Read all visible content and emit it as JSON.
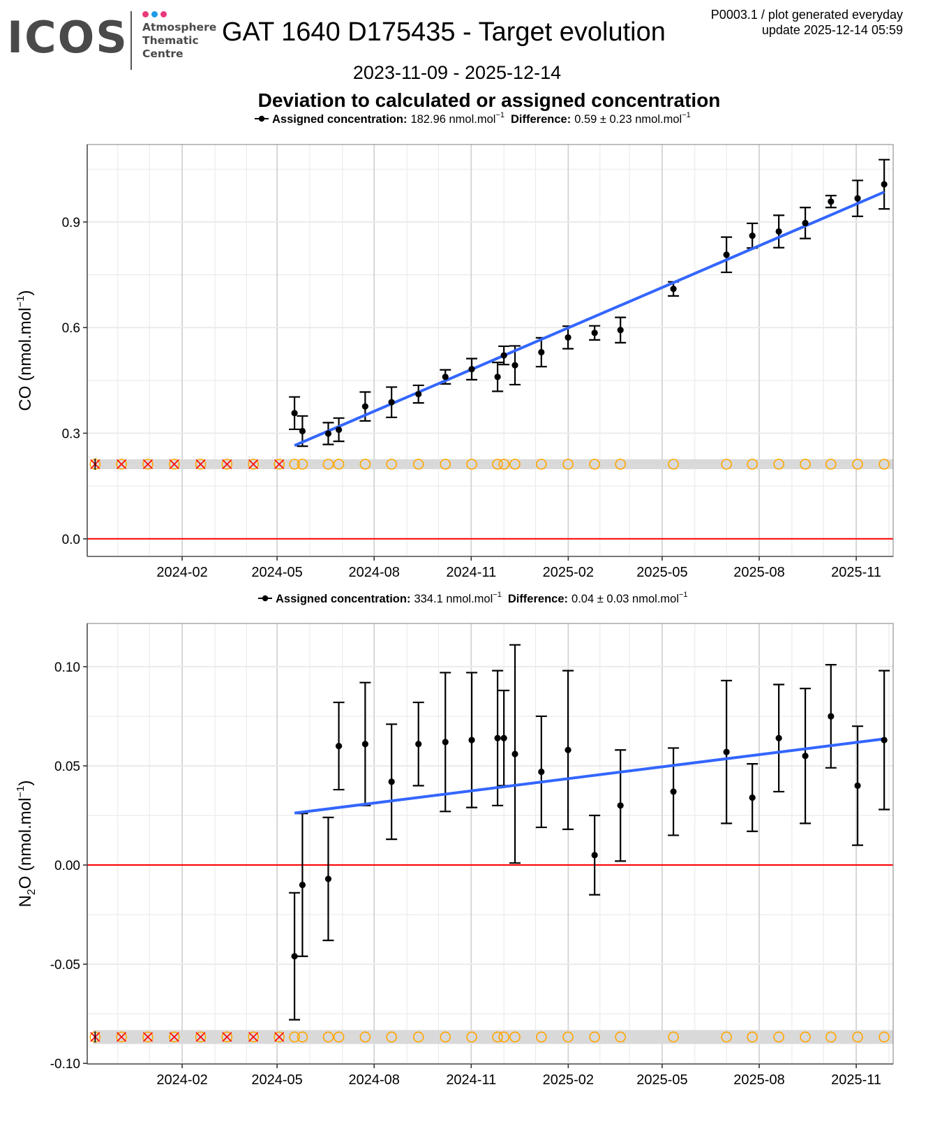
{
  "header": {
    "logo_text": "ICOS",
    "logo_subtitle": [
      "Atmosphere",
      "Thematic",
      "Centre"
    ],
    "logo_dot_colors": [
      "#e8397d",
      "#1e9be9",
      "#e8397d"
    ],
    "title": "GAT 1640 D175435 - Target evolution",
    "meta_line1": "P0003.1 / plot generated everyday",
    "meta_line2": "update  2025-12-14 05:59",
    "date_range": "2023-11-09 - 2025-12-14",
    "chart_heading": "Deviation to calculated or assigned concentration"
  },
  "colors": {
    "points": "#000000",
    "trend": "#3366ff",
    "zero_line": "#ff0000",
    "flag_band": "#d9d9d9",
    "flag_circle": "#ffa500",
    "flag_cross": "#ff0000",
    "grid_major": "#d3d3d3",
    "grid_minor": "#ebebeb"
  },
  "chart_data": [
    {
      "type": "scatter",
      "title": "",
      "xlabel": "",
      "ylabel": "CO (nmol.mol⁻¹)",
      "ylabel_main": "CO (nmol.mol",
      "ylabel_sup": "−1",
      "ylabel_tail": ")",
      "legend": {
        "position": "top",
        "assigned_label": "Assigned concentration:",
        "assigned_value": "182.96 nmol.mol",
        "diff_label": "Difference:",
        "diff_value": "0.59 ± 0.23 nmol.mol",
        "unit_sup": "−1"
      },
      "x_origin_date": "2023-11-09",
      "x_unit": "days since 2023-11-09",
      "xlim": [
        -6,
        758
      ],
      "ylim": [
        -0.05,
        1.12
      ],
      "x_ticks": [
        {
          "label": "2024-02",
          "day": 84
        },
        {
          "label": "2024-05",
          "day": 174
        },
        {
          "label": "2024-08",
          "day": 266
        },
        {
          "label": "2024-11",
          "day": 358
        },
        {
          "label": "2025-02",
          "day": 450
        },
        {
          "label": "2025-05",
          "day": 539
        },
        {
          "label": "2025-08",
          "day": 631
        },
        {
          "label": "2025-11",
          "day": 723
        }
      ],
      "x_minor_days": [
        23,
        53,
        115,
        145,
        205,
        236,
        297,
        327,
        389,
        419,
        480,
        508,
        570,
        600,
        662,
        692,
        754
      ],
      "y_ticks": [
        0.0,
        0.3,
        0.6,
        0.9
      ],
      "y_tick_labels": [
        "0.0",
        "0.3",
        "0.6",
        "0.9"
      ],
      "y_minor": [
        0.15,
        0.45,
        0.75,
        1.05
      ],
      "zero_line": 0.0,
      "flag_band_y": 0.212,
      "flag_band_halfheight": 0.014,
      "points": [
        {
          "day": 190.5,
          "y": 0.357,
          "err": 0.046
        },
        {
          "day": 198,
          "y": 0.306,
          "err": 0.043
        },
        {
          "day": 222.5,
          "y": 0.299,
          "err": 0.031
        },
        {
          "day": 232.5,
          "y": 0.31,
          "err": 0.033
        },
        {
          "day": 257.5,
          "y": 0.376,
          "err": 0.041
        },
        {
          "day": 282.5,
          "y": 0.388,
          "err": 0.043
        },
        {
          "day": 308,
          "y": 0.411,
          "err": 0.025
        },
        {
          "day": 333.5,
          "y": 0.46,
          "err": 0.02
        },
        {
          "day": 358.5,
          "y": 0.482,
          "err": 0.03
        },
        {
          "day": 383,
          "y": 0.46,
          "err": 0.041
        },
        {
          "day": 389,
          "y": 0.521,
          "err": 0.026
        },
        {
          "day": 399.5,
          "y": 0.493,
          "err": 0.055
        },
        {
          "day": 424.5,
          "y": 0.53,
          "err": 0.041
        },
        {
          "day": 449.8,
          "y": 0.572,
          "err": 0.032
        },
        {
          "day": 475,
          "y": 0.585,
          "err": 0.02
        },
        {
          "day": 499.5,
          "y": 0.593,
          "err": 0.036
        },
        {
          "day": 549.7,
          "y": 0.71,
          "err": 0.02
        },
        {
          "day": 600,
          "y": 0.807,
          "err": 0.05
        },
        {
          "day": 624.5,
          "y": 0.861,
          "err": 0.035
        },
        {
          "day": 649.6,
          "y": 0.873,
          "err": 0.046
        },
        {
          "day": 674.7,
          "y": 0.897,
          "err": 0.044
        },
        {
          "day": 699,
          "y": 0.958,
          "err": 0.017
        },
        {
          "day": 724.3,
          "y": 0.967,
          "err": 0.051
        },
        {
          "day": 749.5,
          "y": 1.007,
          "err": 0.07
        }
      ],
      "trend": {
        "x": [
          190.5,
          749.5
        ],
        "y": [
          0.265,
          0.985
        ]
      },
      "flagged_days": [
        1.5,
        26.5,
        51.5,
        76.5,
        101.5,
        126.5,
        151.5,
        176
      ],
      "ok_days": [
        190.5,
        198,
        222.5,
        232.5,
        257.5,
        282.5,
        308,
        333.5,
        358.5,
        383,
        389,
        399.5,
        424.5,
        449.8,
        475,
        499.5,
        549.7,
        600,
        624.5,
        649.6,
        674.7,
        699,
        724.3,
        749.5
      ]
    },
    {
      "type": "scatter",
      "title": "",
      "xlabel": "",
      "ylabel": "N₂O (nmol.mol⁻¹)",
      "ylabel_main": "N",
      "ylabel_sub": "2",
      "ylabel_rest": "O (nmol.mol",
      "ylabel_sup": "−1",
      "ylabel_tail": ")",
      "legend": {
        "position": "top",
        "assigned_label": "Assigned concentration:",
        "assigned_value": "334.1 nmol.mol",
        "diff_label": "Difference:",
        "diff_value": "0.04 ± 0.03 nmol.mol",
        "unit_sup": "−1"
      },
      "x_origin_date": "2023-11-09",
      "x_unit": "days since 2023-11-09",
      "xlim": [
        -6,
        758
      ],
      "ylim": [
        -0.1003,
        0.1218
      ],
      "x_ticks": [
        {
          "label": "2024-02",
          "day": 84
        },
        {
          "label": "2024-05",
          "day": 174
        },
        {
          "label": "2024-08",
          "day": 266
        },
        {
          "label": "2024-11",
          "day": 358
        },
        {
          "label": "2025-02",
          "day": 450
        },
        {
          "label": "2025-05",
          "day": 539
        },
        {
          "label": "2025-08",
          "day": 631
        },
        {
          "label": "2025-11",
          "day": 723
        }
      ],
      "x_minor_days": [
        23,
        53,
        115,
        145,
        205,
        236,
        297,
        327,
        389,
        419,
        480,
        508,
        570,
        600,
        662,
        692,
        754
      ],
      "y_ticks": [
        -0.1,
        -0.05,
        0.0,
        0.05,
        0.1
      ],
      "y_tick_labels": [
        "-0.10",
        "-0.05",
        "0.00",
        "0.05",
        "0.10"
      ],
      "y_minor": [
        -0.075,
        -0.025,
        0.025,
        0.075
      ],
      "zero_line": 0.0,
      "flag_band_y": -0.0867,
      "flag_band_halfheight": 0.0035,
      "points": [
        {
          "day": 190.5,
          "y": -0.046,
          "err": 0.032
        },
        {
          "day": 198,
          "y": -0.01,
          "err": 0.036
        },
        {
          "day": 222.5,
          "y": -0.007,
          "err": 0.031
        },
        {
          "day": 232.5,
          "y": 0.06,
          "err": 0.022
        },
        {
          "day": 257.5,
          "y": 0.061,
          "err": 0.031
        },
        {
          "day": 282.5,
          "y": 0.042,
          "err": 0.029
        },
        {
          "day": 308,
          "y": 0.061,
          "err": 0.021
        },
        {
          "day": 333.5,
          "y": 0.062,
          "err": 0.035
        },
        {
          "day": 358.5,
          "y": 0.063,
          "err": 0.034
        },
        {
          "day": 383,
          "y": 0.064,
          "err": 0.034
        },
        {
          "day": 389,
          "y": 0.064,
          "err": 0.024
        },
        {
          "day": 399.5,
          "y": 0.056,
          "err": 0.055
        },
        {
          "day": 424.5,
          "y": 0.047,
          "err": 0.028
        },
        {
          "day": 449.8,
          "y": 0.058,
          "err": 0.04
        },
        {
          "day": 475,
          "y": 0.005,
          "err": 0.02
        },
        {
          "day": 499.5,
          "y": 0.03,
          "err": 0.028
        },
        {
          "day": 549.7,
          "y": 0.037,
          "err": 0.022
        },
        {
          "day": 600,
          "y": 0.057,
          "err": 0.036
        },
        {
          "day": 624.5,
          "y": 0.034,
          "err": 0.017
        },
        {
          "day": 649.6,
          "y": 0.064,
          "err": 0.027
        },
        {
          "day": 674.7,
          "y": 0.055,
          "err": 0.034
        },
        {
          "day": 699,
          "y": 0.075,
          "err": 0.026
        },
        {
          "day": 724.3,
          "y": 0.04,
          "err": 0.03
        },
        {
          "day": 749.5,
          "y": 0.063,
          "err": 0.035
        }
      ],
      "trend": {
        "x": [
          190.5,
          749.5
        ],
        "y": [
          0.0262,
          0.0636
        ]
      },
      "flagged_days": [
        1.5,
        26.5,
        51.5,
        76.5,
        101.5,
        126.5,
        151.5,
        176
      ],
      "ok_days": [
        190.5,
        198,
        222.5,
        232.5,
        257.5,
        282.5,
        308,
        333.5,
        358.5,
        383,
        389,
        399.5,
        424.5,
        449.8,
        475,
        499.5,
        549.7,
        600,
        624.5,
        649.6,
        674.7,
        699,
        724.3,
        749.5
      ]
    }
  ]
}
